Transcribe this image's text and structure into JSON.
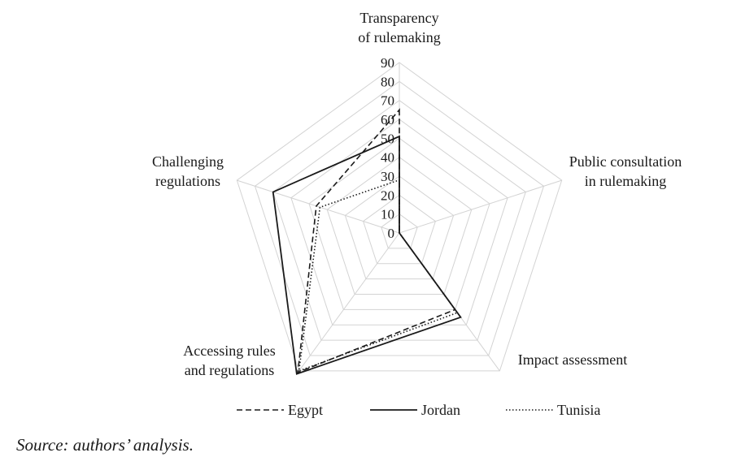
{
  "chart_data": {
    "type": "radar",
    "axes": [
      "Transparency of rulemaking",
      "Public consultation in rulemaking",
      "Impact assessment",
      "Accessing rules and regulations",
      "Challenging regulations"
    ],
    "axis_label_lines": [
      [
        "Transparency",
        "of rulemaking"
      ],
      [
        "Public consultation",
        "in rulemaking"
      ],
      [
        "Impact assessment"
      ],
      [
        "Accessing rules",
        "and regulations"
      ],
      [
        "Challenging",
        "regulations"
      ]
    ],
    "ticks": [
      "0",
      "10",
      "20",
      "30",
      "40",
      "50",
      "60",
      "70",
      "80",
      "90"
    ],
    "rmax": 90,
    "grid": true,
    "legend_position": "bottom",
    "series": [
      {
        "name": "Egypt",
        "style": "dashed",
        "values": [
          65,
          0,
          50,
          91,
          46
        ]
      },
      {
        "name": "Jordan",
        "style": "solid",
        "values": [
          51,
          0,
          55,
          92,
          70
        ]
      },
      {
        "name": "Tunisia",
        "style": "dotted",
        "values": [
          28,
          0,
          52,
          90,
          44
        ]
      }
    ]
  },
  "source_note": "Source: authors’ analysis."
}
